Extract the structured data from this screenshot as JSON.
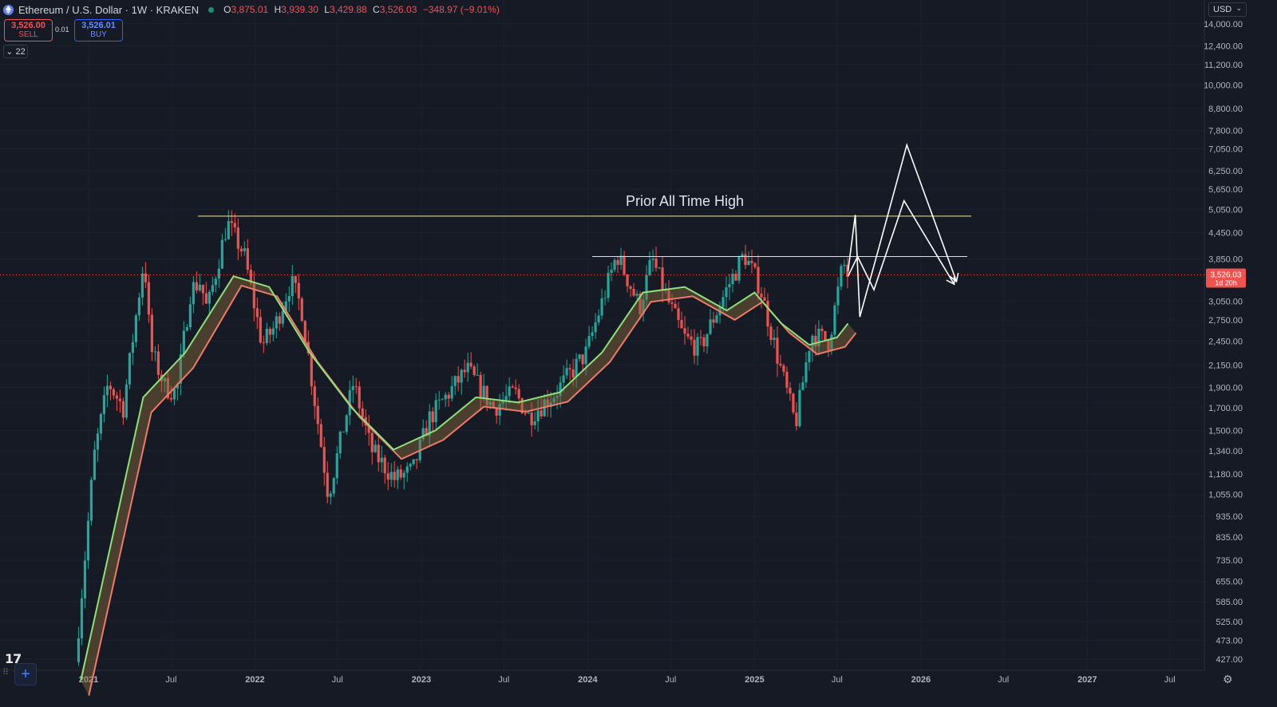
{
  "header": {
    "symbol_title": "Ethereum / U.S. Dollar · 1W · KRAKEN",
    "ohlc": [
      {
        "k": "O",
        "v": "3,875.01"
      },
      {
        "k": "H",
        "v": "3,939.30"
      },
      {
        "k": "L",
        "v": "3,429.88"
      },
      {
        "k": "C",
        "v": "3,526.03"
      }
    ],
    "change": "−348.97 (−9.01%)"
  },
  "trade": {
    "sell_price": "3,526.00",
    "sell_label": "SELL",
    "spread": "0.01",
    "buy_price": "3,526.01",
    "buy_label": "BUY"
  },
  "indicators_toggle": "22",
  "currency": "USD",
  "price_label": {
    "value": "3,526.03",
    "countdown": "1d 20h"
  },
  "annotation": "Prior All Time High",
  "colors": {
    "background": "#161a25",
    "up": "#26a69a",
    "down": "#ef5350",
    "fast_ema": "#8ee07a",
    "slow_ema": "#f07a6a",
    "line": "#f0e6a0"
  },
  "chart_data": {
    "type": "candlestick",
    "y_scale": "log",
    "y_ticks": [
      "14,000.00",
      "12,400.00",
      "11,200.00",
      "10,000.00",
      "8,800.00",
      "7,800.00",
      "7,050.00",
      "6,250.00",
      "5,650.00",
      "5,050.00",
      "4,450.00",
      "3,850.00",
      "3,050.00",
      "2,750.00",
      "2,450.00",
      "2,150.00",
      "1,900.00",
      "1,700.00",
      "1,500.00",
      "1,340.00",
      "1,180.00",
      "1,055.00",
      "935.00",
      "835.00",
      "735.00",
      "655.00",
      "585.00",
      "525.00",
      "473.00",
      "427.00"
    ],
    "x_ticks": [
      "2021",
      "Jul",
      "2022",
      "Jul",
      "2023",
      "Jul",
      "2024",
      "Jul",
      "2025",
      "Jul",
      "2026",
      "Jul",
      "2027",
      "Jul"
    ],
    "last_price": 3526.03,
    "horizontal_lines": [
      {
        "label": "Prior All Time High",
        "price": 4870
      },
      {
        "label": "",
        "price": 3900
      }
    ],
    "series": [
      {
        "name": "",
        "type": "ema_band",
        "points": [
          [
            "2020-12-15",
            380
          ],
          [
            "2021-03-01",
            900
          ],
          [
            "2021-05-01",
            1800
          ],
          [
            "2021-08-01",
            2300
          ],
          [
            "2021-11-15",
            3500
          ],
          [
            "2022-02-01",
            3300
          ],
          [
            "2022-05-01",
            2300
          ],
          [
            "2022-08-01",
            1700
          ],
          [
            "2022-11-01",
            1350
          ],
          [
            "2023-02-01",
            1500
          ],
          [
            "2023-05-01",
            1800
          ],
          [
            "2023-08-01",
            1750
          ],
          [
            "2023-11-01",
            1850
          ],
          [
            "2024-02-01",
            2300
          ],
          [
            "2024-05-01",
            3200
          ],
          [
            "2024-08-01",
            3300
          ],
          [
            "2024-11-01",
            2900
          ],
          [
            "2025-01-01",
            3200
          ],
          [
            "2025-03-01",
            2700
          ],
          [
            "2025-05-01",
            2400
          ],
          [
            "2025-07-01",
            2500
          ],
          [
            "2025-07-25",
            2700
          ]
        ]
      }
    ],
    "projections": [
      {
        "points": [
          [
            "2025-07-25",
            3600
          ],
          [
            "2025-08-10",
            4900
          ],
          [
            "2025-08-20",
            2800
          ],
          [
            "2025-10-01",
            4100
          ],
          [
            "2025-12-01",
            7200
          ],
          [
            "2026-03-20",
            3400
          ]
        ]
      },
      {
        "points": [
          [
            "2025-07-25",
            3500
          ],
          [
            "2025-08-15",
            3900
          ],
          [
            "2025-09-20",
            3250
          ],
          [
            "2025-11-25",
            5300
          ],
          [
            "2026-03-15",
            3350
          ]
        ]
      }
    ]
  }
}
